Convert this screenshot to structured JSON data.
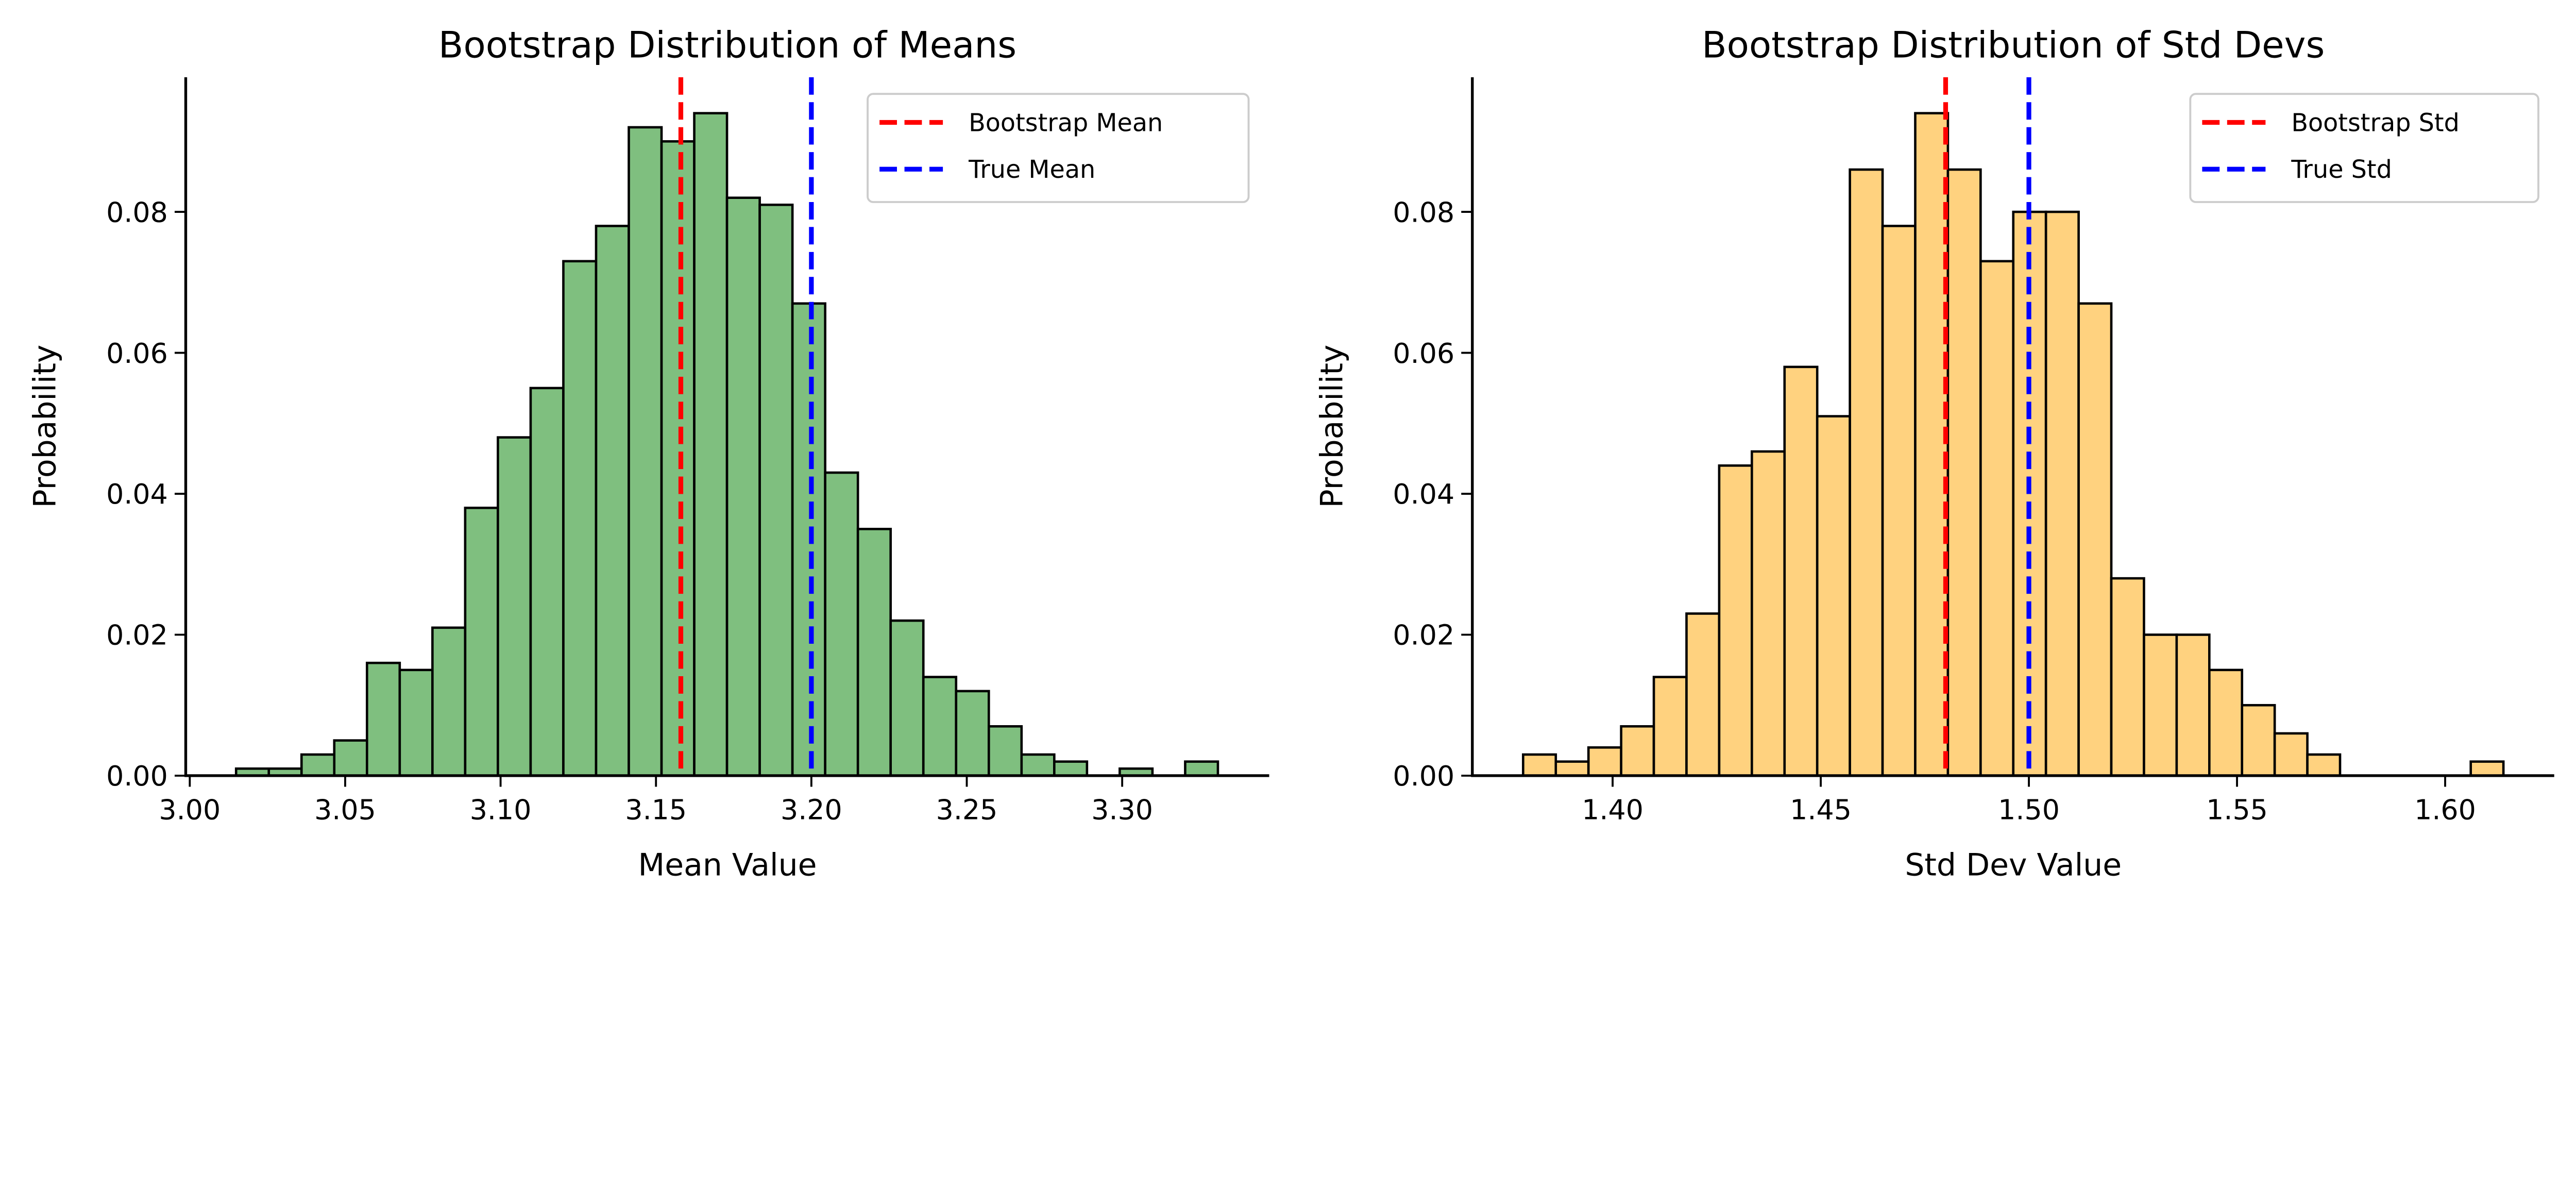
{
  "chart_data": [
    {
      "type": "bar",
      "title": "Bootstrap Distribution of Means",
      "xlabel": "Mean Value",
      "ylabel": "Probability",
      "xlim": [
        2.9987,
        3.3473
      ],
      "ylim": [
        0,
        0.0991
      ],
      "xticks": [
        3.0,
        3.05,
        3.1,
        3.15,
        3.2,
        3.25,
        3.3
      ],
      "xtick_labels": [
        "3.00",
        "3.05",
        "3.10",
        "3.15",
        "3.20",
        "3.25",
        "3.30"
      ],
      "yticks": [
        0,
        0.02,
        0.04,
        0.06,
        0.08
      ],
      "ytick_labels": [
        "0.00",
        "0.02",
        "0.04",
        "0.06",
        "0.08"
      ],
      "bin_start": 3.0149,
      "bin_width": 0.01053,
      "values": [
        0.001,
        0.001,
        0.003,
        0.005,
        0.016,
        0.015,
        0.021,
        0.038,
        0.048,
        0.055,
        0.073,
        0.078,
        0.092,
        0.09,
        0.094,
        0.082,
        0.081,
        0.067,
        0.043,
        0.035,
        0.022,
        0.014,
        0.012,
        0.007,
        0.003,
        0.002,
        0,
        0.001,
        0,
        0.002
      ],
      "bar_color": "#7fbf7f",
      "edge_color": "#000000",
      "vlines": [
        {
          "label": "Bootstrap Mean",
          "x": 3.158,
          "color": "#ff0000"
        },
        {
          "label": "True Mean",
          "x": 3.2,
          "color": "#0000ff"
        }
      ],
      "legend_position": "top-right"
    },
    {
      "type": "bar",
      "title": "Bootstrap Distribution of Std Devs",
      "xlabel": "Std Dev Value",
      "ylabel": "Probability",
      "xlim": [
        1.3663,
        1.6262
      ],
      "ylim": [
        0,
        0.0991
      ],
      "xticks": [
        1.4,
        1.45,
        1.5,
        1.55,
        1.6
      ],
      "xtick_labels": [
        "1.40",
        "1.45",
        "1.50",
        "1.55",
        "1.60"
      ],
      "yticks": [
        0,
        0.02,
        0.04,
        0.06,
        0.08
      ],
      "ytick_labels": [
        "0.00",
        "0.02",
        "0.04",
        "0.06",
        "0.08"
      ],
      "bin_start": 1.3785,
      "bin_width": 0.00785,
      "values": [
        0.003,
        0.002,
        0.004,
        0.007,
        0.014,
        0.023,
        0.044,
        0.046,
        0.058,
        0.051,
        0.086,
        0.078,
        0.094,
        0.086,
        0.073,
        0.08,
        0.08,
        0.067,
        0.028,
        0.02,
        0.02,
        0.015,
        0.01,
        0.006,
        0.003,
        0,
        0,
        0,
        0,
        0.002
      ],
      "bar_color": "#ffd27f",
      "edge_color": "#000000",
      "vlines": [
        {
          "label": "Bootstrap Std",
          "x": 1.48,
          "color": "#ff0000"
        },
        {
          "label": "True Std",
          "x": 1.5,
          "color": "#0000ff"
        }
      ],
      "legend_position": "top-right"
    }
  ]
}
